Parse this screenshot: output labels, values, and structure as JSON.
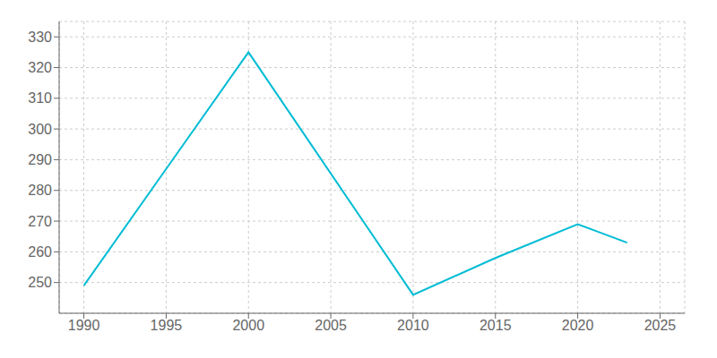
{
  "chart_data": {
    "type": "line",
    "x": [
      1990,
      1995,
      2000,
      2010,
      2015,
      2020,
      2021,
      2023
    ],
    "values": [
      249,
      287,
      325,
      246,
      258,
      269,
      267,
      263
    ],
    "color": "#00BCD4",
    "xlim": [
      1988.5,
      2026.5
    ],
    "ylim": [
      240,
      335
    ],
    "xticks": [
      1990,
      1995,
      2000,
      2005,
      2010,
      2015,
      2020,
      2025
    ],
    "yticks": [
      250,
      260,
      270,
      280,
      290,
      300,
      310,
      320,
      330
    ],
    "grid": true
  }
}
